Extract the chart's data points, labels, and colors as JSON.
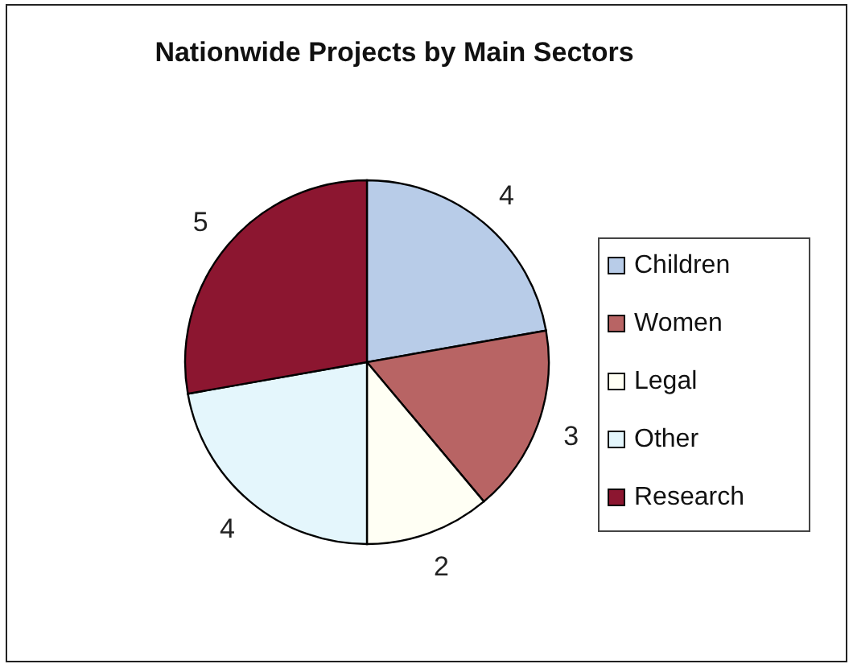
{
  "chart_data": {
    "type": "pie",
    "title": "Nationwide Projects by Main Sectors",
    "categories": [
      "Children",
      "Women",
      "Legal",
      "Other",
      "Research"
    ],
    "values": [
      4,
      3,
      2,
      4,
      5
    ],
    "colors": [
      "#b8cce8",
      "#b86464",
      "#fffff4",
      "#e4f6fc",
      "#8c1630"
    ],
    "data_labels": true,
    "legend": "right"
  }
}
